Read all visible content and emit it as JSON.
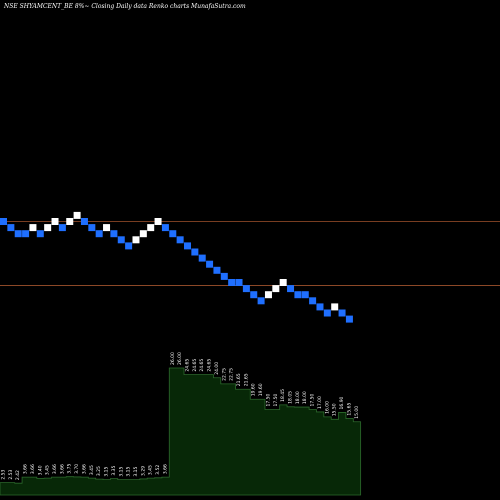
{
  "title": "NSE SHYAMCENT_BE 8%~ Closing Daily data  Renko  charts MunafaSutra.com",
  "colors": {
    "background": "#000000",
    "up_brick": "#ffffff",
    "down_brick": "#1f6fff",
    "reference_line": "#a0522d",
    "volume_fill": "#072807",
    "volume_border": "#2c6a2c",
    "label": "#ffffff"
  },
  "chart_data": {
    "type": "renko",
    "title": "NSE SHYAMCENT_BE 8%~ Closing Daily data  Renko  charts MunafaSutra.com",
    "brick_dirs": [
      "down",
      "down",
      "down",
      "down",
      "up",
      "down",
      "up",
      "up",
      "down",
      "up",
      "up",
      "down",
      "down",
      "down",
      "up",
      "down",
      "down",
      "down",
      "up",
      "up",
      "up",
      "up",
      "down",
      "down",
      "down",
      "down",
      "down",
      "down",
      "down",
      "down",
      "down",
      "down",
      "down",
      "down",
      "down",
      "down",
      "up",
      "up",
      "up",
      "down",
      "down",
      "down",
      "down",
      "down",
      "down",
      "up",
      "down",
      "down"
    ],
    "brick_levels": [
      0,
      -1,
      -2,
      -2,
      -1,
      -2,
      -1,
      0,
      -1,
      0,
      1,
      0,
      -1,
      -2,
      -1,
      -2,
      -3,
      -4,
      -3,
      -2,
      -1,
      0,
      -1,
      -2,
      -3,
      -4,
      -5,
      -6,
      -7,
      -8,
      -9,
      -10,
      -10,
      -11,
      -12,
      -13,
      -12,
      -11,
      -10,
      -11,
      -12,
      -12,
      -13,
      -14,
      -15,
      -14,
      -15,
      -16
    ],
    "reference_line_levels": [
      0,
      -10.5
    ],
    "volume": {
      "labels": [
        "2.53",
        "2.53",
        "2.42",
        "3.66",
        "3.66",
        "3.40",
        "3.45",
        "3.66",
        "3.66",
        "3.75",
        "3.70",
        "3.66",
        "3.45",
        "3.25",
        "3.15",
        "3.35",
        "3.15",
        "3.15",
        "3.15",
        "3.29",
        "3.45",
        "3.52",
        "3.66",
        "26.00",
        "26.00",
        "24.65",
        "24.65",
        "24.65",
        "24.65",
        "24.00",
        "22.75",
        "22.75",
        "21.65",
        "21.65",
        "19.60",
        "19.60",
        "17.50",
        "17.50",
        "18.45",
        "18.05",
        "18.00",
        "18.00",
        "17.50",
        "17.00",
        "16.00",
        "15.50",
        "16.90",
        "15.65",
        "15.00"
      ],
      "values": [
        2.53,
        2.53,
        2.42,
        3.66,
        3.66,
        3.4,
        3.45,
        3.66,
        3.66,
        3.75,
        3.7,
        3.66,
        3.45,
        3.25,
        3.15,
        3.35,
        3.15,
        3.15,
        3.15,
        3.29,
        3.45,
        3.52,
        3.66,
        26.0,
        26.0,
        24.65,
        24.65,
        24.65,
        24.65,
        24.0,
        22.75,
        22.75,
        21.65,
        21.65,
        19.6,
        19.6,
        17.5,
        17.5,
        18.45,
        18.05,
        18.0,
        18.0,
        17.5,
        17.0,
        16.0,
        15.5,
        16.9,
        15.65,
        15.0
      ]
    }
  }
}
